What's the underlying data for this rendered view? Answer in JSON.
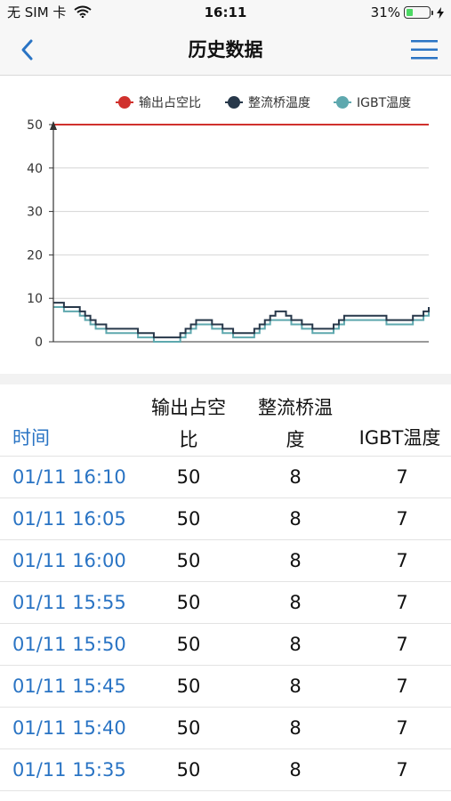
{
  "status_bar": {
    "carrier": "无 SIM 卡",
    "time": "16:11",
    "battery": "31%",
    "battery_level": 0.31
  },
  "nav": {
    "title": "历史数据"
  },
  "chart_data": {
    "type": "line",
    "y_ticks": [
      "0",
      "10",
      "20",
      "30",
      "40",
      "50"
    ],
    "ylim": [
      0,
      50
    ],
    "grid": true,
    "legend_position": "top-right",
    "series": [
      {
        "name": "输出占空比",
        "color": "#d0312d",
        "values": [
          50,
          50,
          50,
          50,
          50,
          50,
          50,
          50,
          50,
          50,
          50,
          50,
          50,
          50,
          50,
          50,
          50,
          50,
          50,
          50,
          50,
          50,
          50,
          50,
          50,
          50,
          50,
          50,
          50,
          50,
          50,
          50,
          50,
          50,
          50,
          50,
          50,
          50,
          50,
          50,
          50,
          50,
          50,
          50,
          50,
          50,
          50,
          50,
          50,
          50,
          50,
          50,
          50,
          50,
          50,
          50,
          50,
          50,
          50,
          50,
          50,
          50,
          50,
          50,
          50,
          50,
          50,
          50,
          50,
          50,
          50,
          50
        ]
      },
      {
        "name": "整流桥温度",
        "color": "#27384a",
        "values": [
          9,
          9,
          8,
          8,
          8,
          7,
          6,
          5,
          4,
          4,
          3,
          3,
          3,
          3,
          3,
          3,
          2,
          2,
          2,
          1,
          1,
          1,
          1,
          1,
          2,
          3,
          4,
          5,
          5,
          5,
          4,
          4,
          3,
          3,
          2,
          2,
          2,
          2,
          3,
          4,
          5,
          6,
          7,
          7,
          6,
          5,
          5,
          4,
          4,
          3,
          3,
          3,
          3,
          4,
          5,
          6,
          6,
          6,
          6,
          6,
          6,
          6,
          6,
          5,
          5,
          5,
          5,
          5,
          6,
          6,
          7,
          8
        ]
      },
      {
        "name": "IGBT温度",
        "color": "#5ea8ae",
        "values": [
          8,
          8,
          7,
          7,
          7,
          6,
          5,
          4,
          3,
          3,
          2,
          2,
          2,
          2,
          2,
          2,
          1,
          1,
          1,
          0,
          0,
          0,
          0,
          0,
          1,
          2,
          3,
          4,
          4,
          4,
          3,
          3,
          2,
          2,
          1,
          1,
          1,
          1,
          2,
          3,
          4,
          5,
          5,
          5,
          5,
          4,
          4,
          3,
          3,
          2,
          2,
          2,
          2,
          3,
          4,
          5,
          5,
          5,
          5,
          5,
          5,
          5,
          5,
          4,
          4,
          4,
          4,
          4,
          5,
          5,
          6,
          7
        ]
      }
    ]
  },
  "table": {
    "headers": {
      "time": "时间",
      "c1_line1": "输出占空",
      "c1_line2": "比",
      "c2_line1": "整流桥温",
      "c2_line2": "度",
      "c3": "IGBT温度"
    },
    "rows": [
      {
        "time": "01/11 16:10",
        "duty": "50",
        "bridge": "8",
        "igbt": "7"
      },
      {
        "time": "01/11 16:05",
        "duty": "50",
        "bridge": "8",
        "igbt": "7"
      },
      {
        "time": "01/11 16:00",
        "duty": "50",
        "bridge": "8",
        "igbt": "7"
      },
      {
        "time": "01/11 15:55",
        "duty": "50",
        "bridge": "8",
        "igbt": "7"
      },
      {
        "time": "01/11 15:50",
        "duty": "50",
        "bridge": "8",
        "igbt": "7"
      },
      {
        "time": "01/11 15:45",
        "duty": "50",
        "bridge": "8",
        "igbt": "7"
      },
      {
        "time": "01/11 15:40",
        "duty": "50",
        "bridge": "8",
        "igbt": "7"
      },
      {
        "time": "01/11 15:35",
        "duty": "50",
        "bridge": "8",
        "igbt": "7"
      }
    ]
  }
}
